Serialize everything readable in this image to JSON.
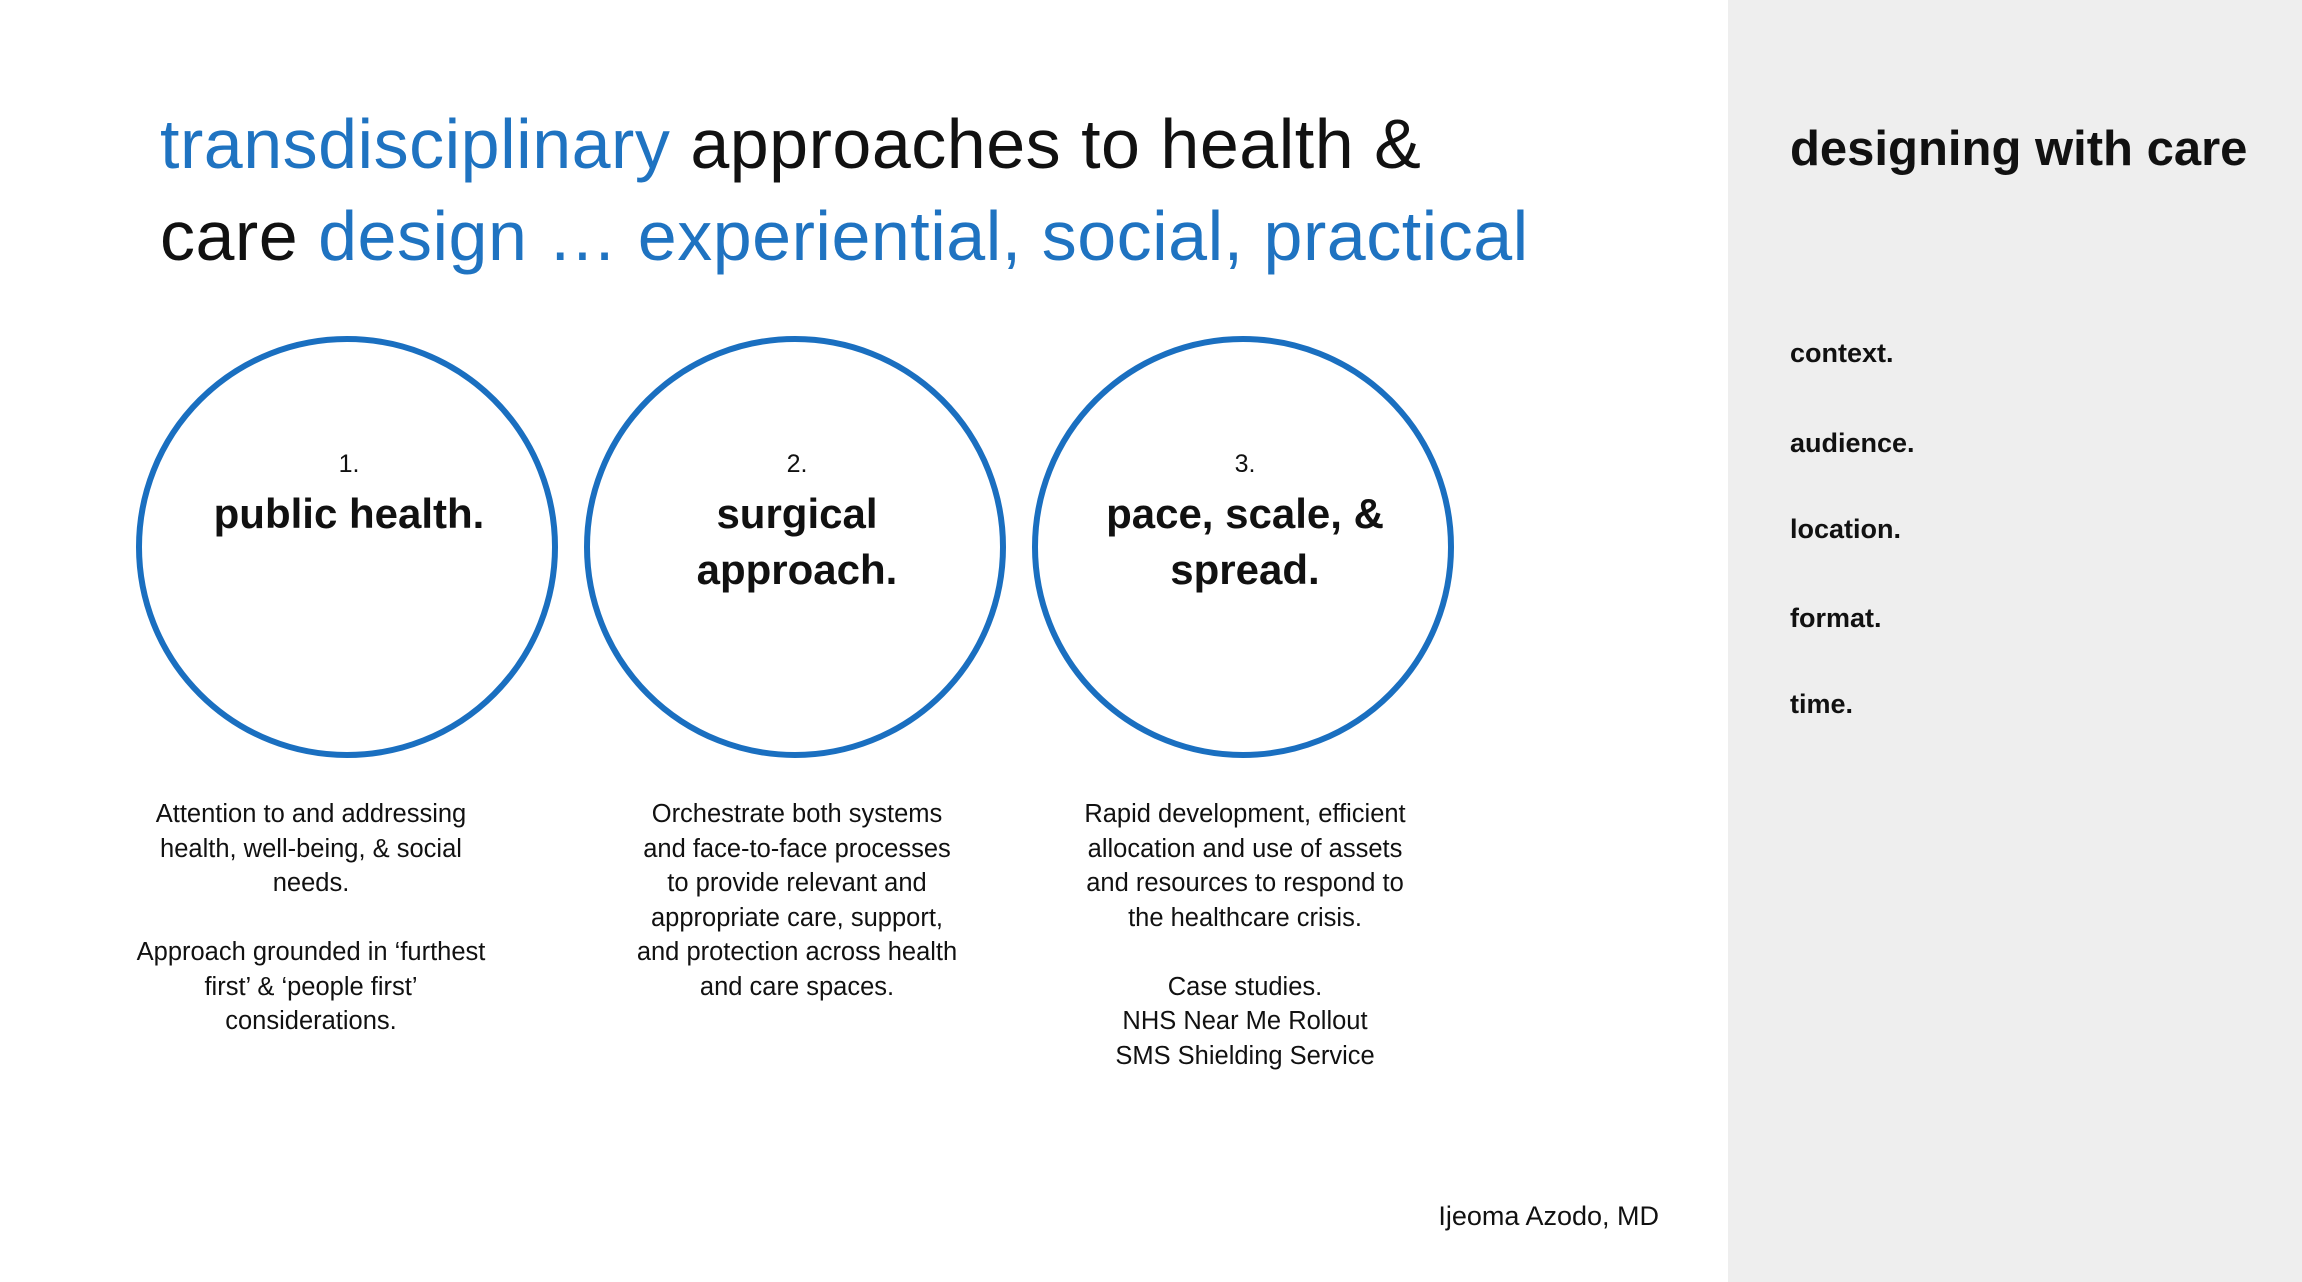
{
  "title": {
    "line1_blue": "transdisciplinary",
    "line1_black": " approaches to health &",
    "line2_black": "care ",
    "line2_blue": "design … experiential, social, practical"
  },
  "colors": {
    "accent": "#1f73c1",
    "panel_bg": "#eeeeee"
  },
  "circles": [
    {
      "number": "1.",
      "title": "public health.",
      "desc": [
        "Attention to and addressing health, well-being, & social needs.",
        "Approach grounded in ‘furthest first’ & ‘people first’ considerations."
      ]
    },
    {
      "number": "2.",
      "title": "surgical approach.",
      "desc": [
        "Orchestrate both systems and face-to-face processes to provide relevant and appropriate care, support, and protection across health and care spaces."
      ]
    },
    {
      "number": "3.",
      "title": "pace, scale, & spread.",
      "desc": [
        "Rapid development, efficient allocation and use of assets and resources to respond to the healthcare crisis.",
        "Case studies.\nNHS Near Me Rollout\nSMS Shielding Service"
      ]
    }
  ],
  "panel": {
    "title": "designing with care",
    "items": [
      "context.",
      "audience.",
      "location.",
      "format.",
      "time."
    ]
  },
  "author": "Ijeoma Azodo, MD"
}
